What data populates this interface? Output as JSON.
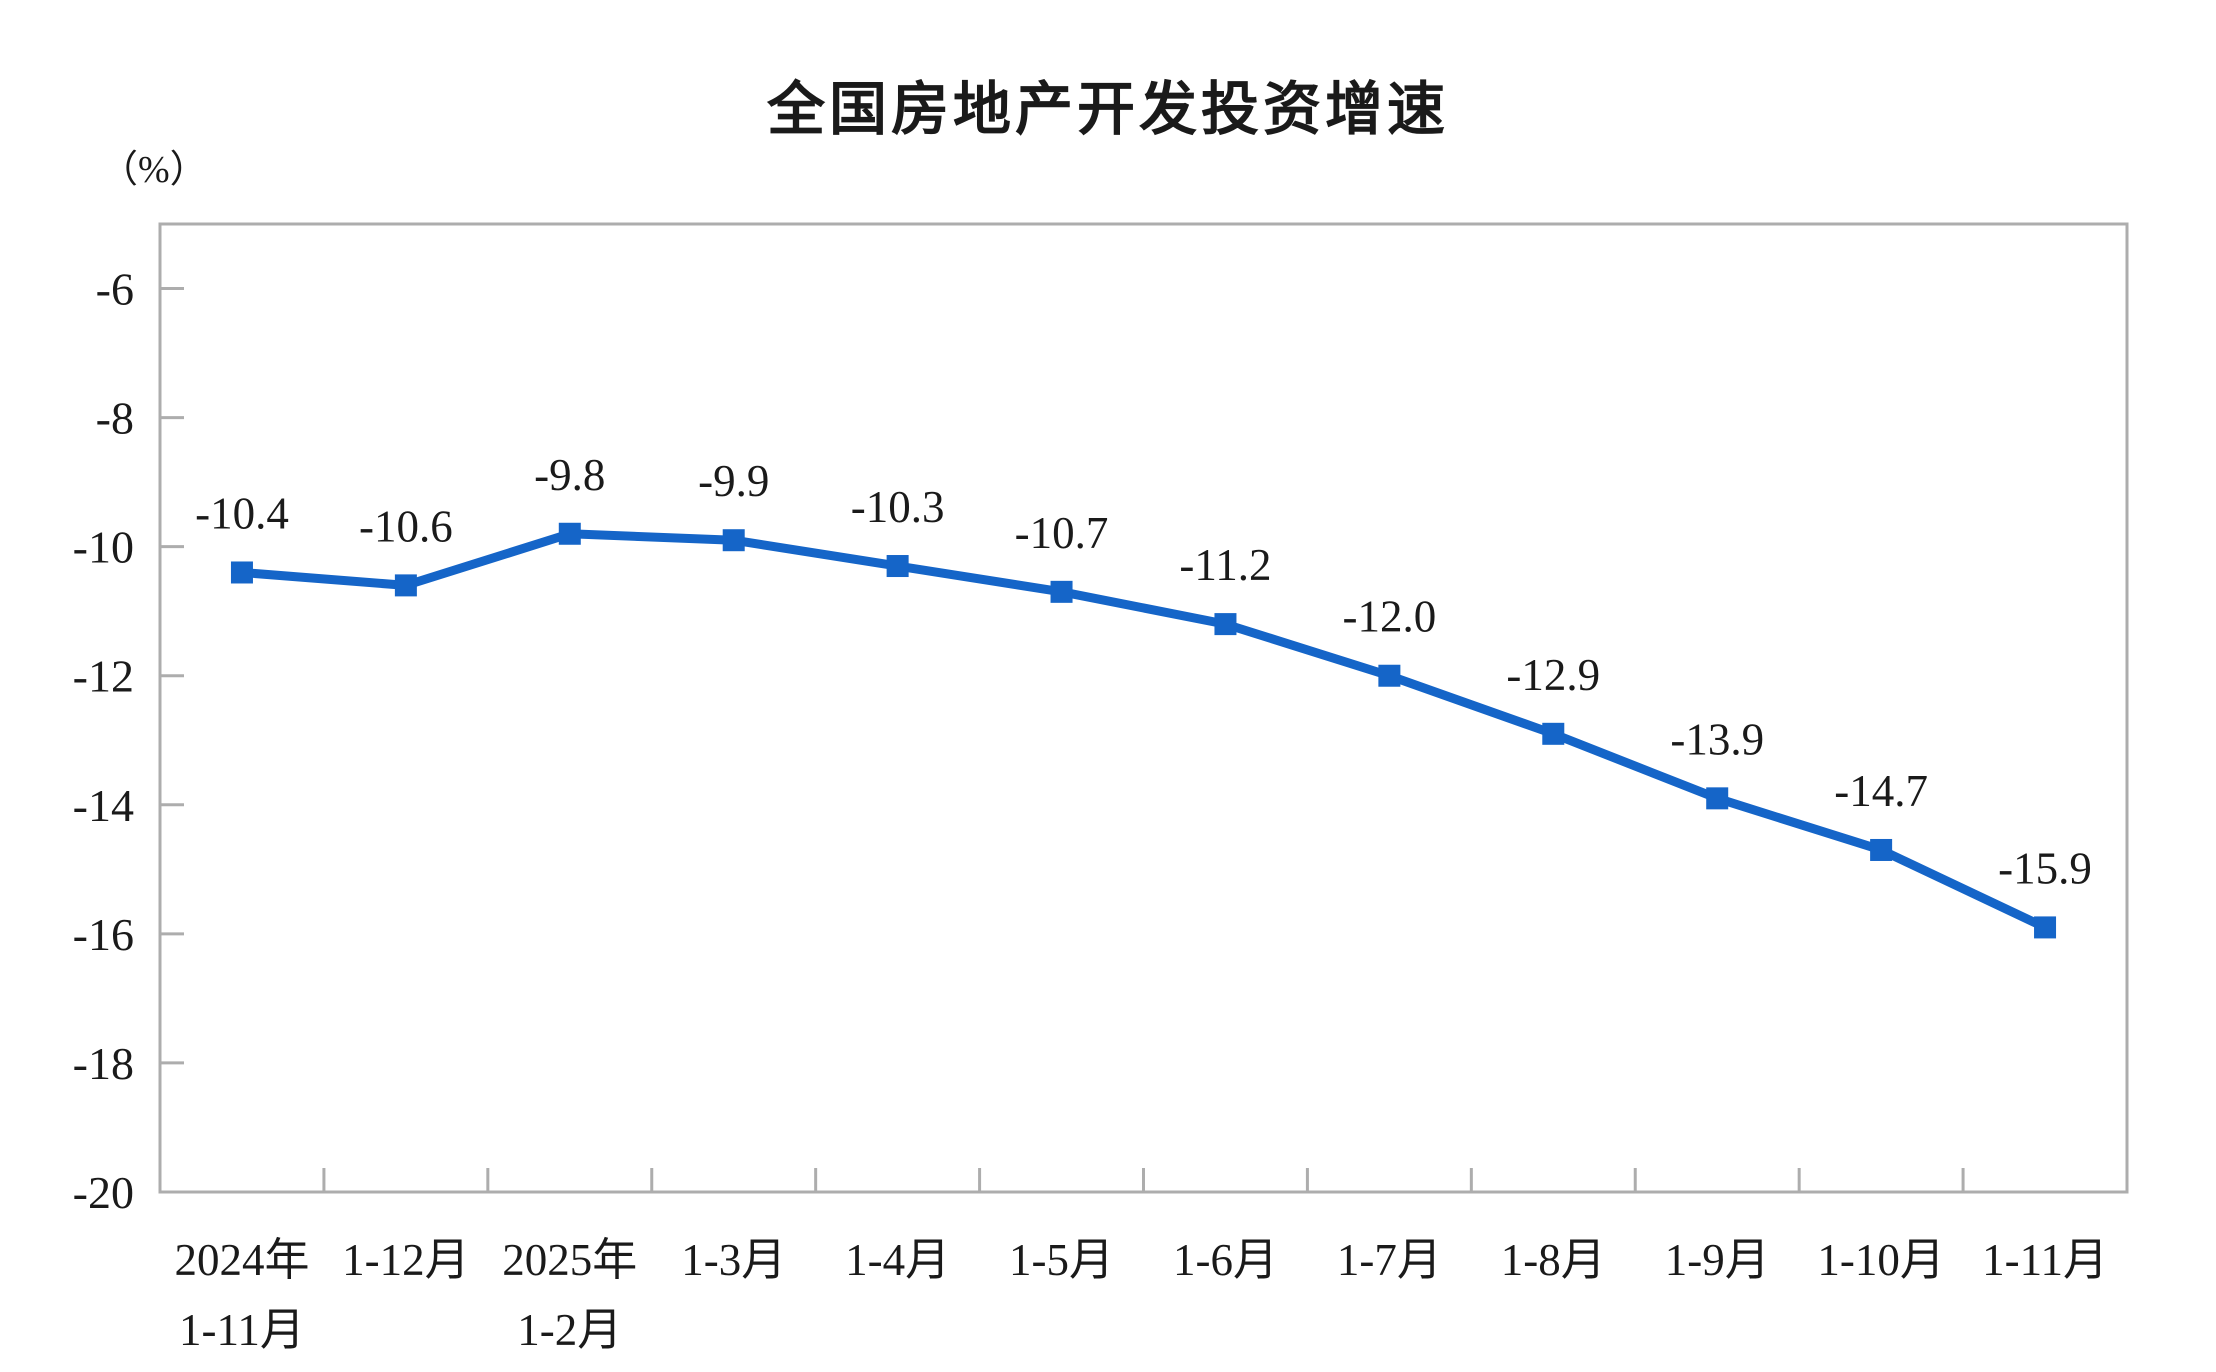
{
  "chart_data": {
    "type": "line",
    "title": "全国房地产开发投资增速",
    "unit_label": "（%）",
    "categories": [
      [
        "2024年",
        "1-11月"
      ],
      [
        "1-12月"
      ],
      [
        "2025年",
        "1-2月"
      ],
      [
        "1-3月"
      ],
      [
        "1-4月"
      ],
      [
        "1-5月"
      ],
      [
        "1-6月"
      ],
      [
        "1-7月"
      ],
      [
        "1-8月"
      ],
      [
        "1-9月"
      ],
      [
        "1-10月"
      ],
      [
        "1-11月"
      ]
    ],
    "values": [
      -10.4,
      -10.6,
      -9.8,
      -9.9,
      -10.3,
      -10.7,
      -11.2,
      -12.0,
      -12.9,
      -13.9,
      -14.7,
      -15.9
    ],
    "data_labels": [
      "-10.4",
      "-10.6",
      "-9.8",
      "-9.9",
      "-10.3",
      "-10.7",
      "-11.2",
      "-12.0",
      "-12.9",
      "-13.9",
      "-14.7",
      "-15.9"
    ],
    "ytick_labels": [
      "-6",
      "-8",
      "-10",
      "-12",
      "-14",
      "-16",
      "-18",
      "-20"
    ],
    "yticks": [
      -6,
      -8,
      -10,
      -12,
      -14,
      -16,
      -18,
      -20
    ],
    "ylim": [
      -20,
      -5
    ],
    "grid": false,
    "legend": "none",
    "marker": "square",
    "colors": {
      "line": "#1565C8",
      "marker": "#1565C8",
      "text": "#1a1a1a",
      "axis": "#ADADAD"
    }
  }
}
